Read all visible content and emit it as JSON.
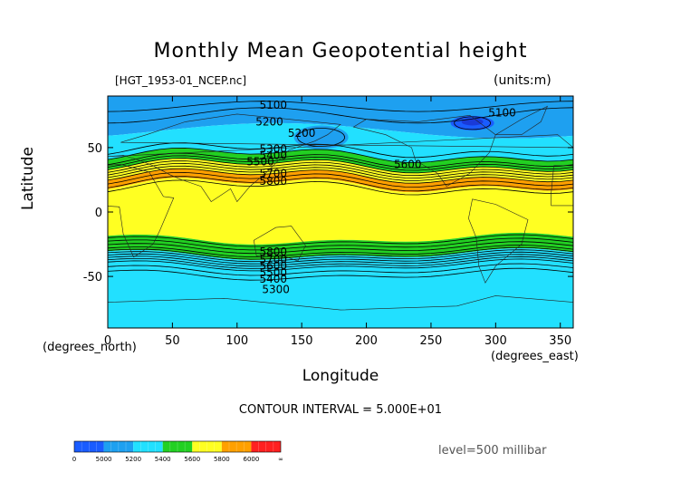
{
  "chart_data": {
    "type": "heatmap",
    "title": "Monthly Mean Geopotential height",
    "file_label": "[HGT_1953-01_NCEP.nc]",
    "units_label": "(units:m)",
    "xlabel": "Longitude",
    "xunit": "(degrees_east)",
    "ylabel": "Latitude",
    "yunit": "(degrees_north)",
    "xlim": [
      0,
      360
    ],
    "ylim": [
      -90,
      90
    ],
    "x_ticks": [
      0,
      50,
      100,
      150,
      200,
      250,
      300,
      350
    ],
    "y_ticks": [
      50,
      0,
      -50
    ],
    "contour_interval": "CONTOUR INTERVAL = 5.000E+01",
    "level": "level=500 millibar",
    "color_levels": [
      "0",
      "5000",
      "5200",
      "5400",
      "5600",
      "5800",
      "6000",
      "∞"
    ],
    "color_bins": [
      "#1a5cff",
      "#1ea0f0",
      "#22e0ff",
      "#22d022",
      "#ffff22",
      "#ffa000",
      "#ff2020"
    ],
    "contour_labels": [
      {
        "text": "5100",
        "lon": 128,
        "lat": 83
      },
      {
        "text": "5200",
        "lon": 125,
        "lat": 70
      },
      {
        "text": "5200",
        "lon": 150,
        "lat": 61
      },
      {
        "text": "5100",
        "lon": 305,
        "lat": 77
      },
      {
        "text": "5300",
        "lon": 128,
        "lat": 49
      },
      {
        "text": "5400",
        "lon": 128,
        "lat": 44
      },
      {
        "text": "5500",
        "lon": 118,
        "lat": 39
      },
      {
        "text": "5600",
        "lon": 232,
        "lat": 37
      },
      {
        "text": "5700",
        "lon": 128,
        "lat": 30
      },
      {
        "text": "5800",
        "lon": 128,
        "lat": 24
      },
      {
        "text": "5800",
        "lon": 128,
        "lat": -31
      },
      {
        "text": "5700",
        "lon": 128,
        "lat": -37
      },
      {
        "text": "5600",
        "lon": 128,
        "lat": -42
      },
      {
        "text": "5500",
        "lon": 128,
        "lat": -47
      },
      {
        "text": "5400",
        "lon": 128,
        "lat": -52
      },
      {
        "text": "5300",
        "lon": 130,
        "lat": -60
      }
    ],
    "grid": false
  }
}
